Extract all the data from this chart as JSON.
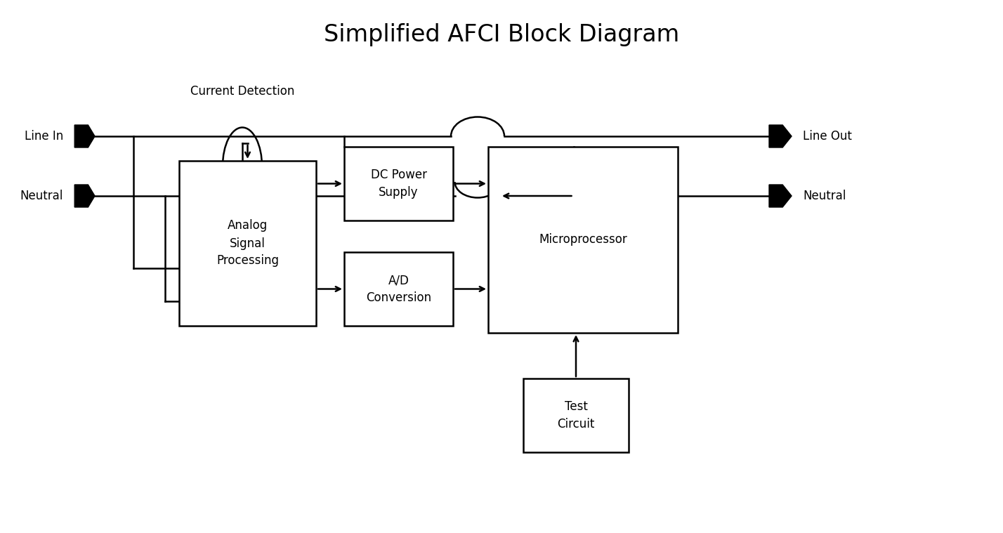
{
  "title": "Simplified AFCI Block Diagram",
  "title_fontsize": 24,
  "bg_color": "#ffffff",
  "line_color": "#000000",
  "lw": 1.8,
  "label_fontsize": 12,
  "figsize": [
    14.28,
    7.59
  ],
  "dpi": 100,
  "labels": {
    "line_in": "Line In",
    "neutral_in": "Neutral",
    "line_out": "Line Out",
    "neutral_out": "Neutral",
    "current_detection": "Current Detection",
    "analog": "Analog\nSignal\nProcessing",
    "dc_power": "DC Power\nSupply",
    "ad_conversion": "A/D\nConversion",
    "microprocessor": "Microprocessor",
    "test_circuit": "Test\nCircuit"
  }
}
